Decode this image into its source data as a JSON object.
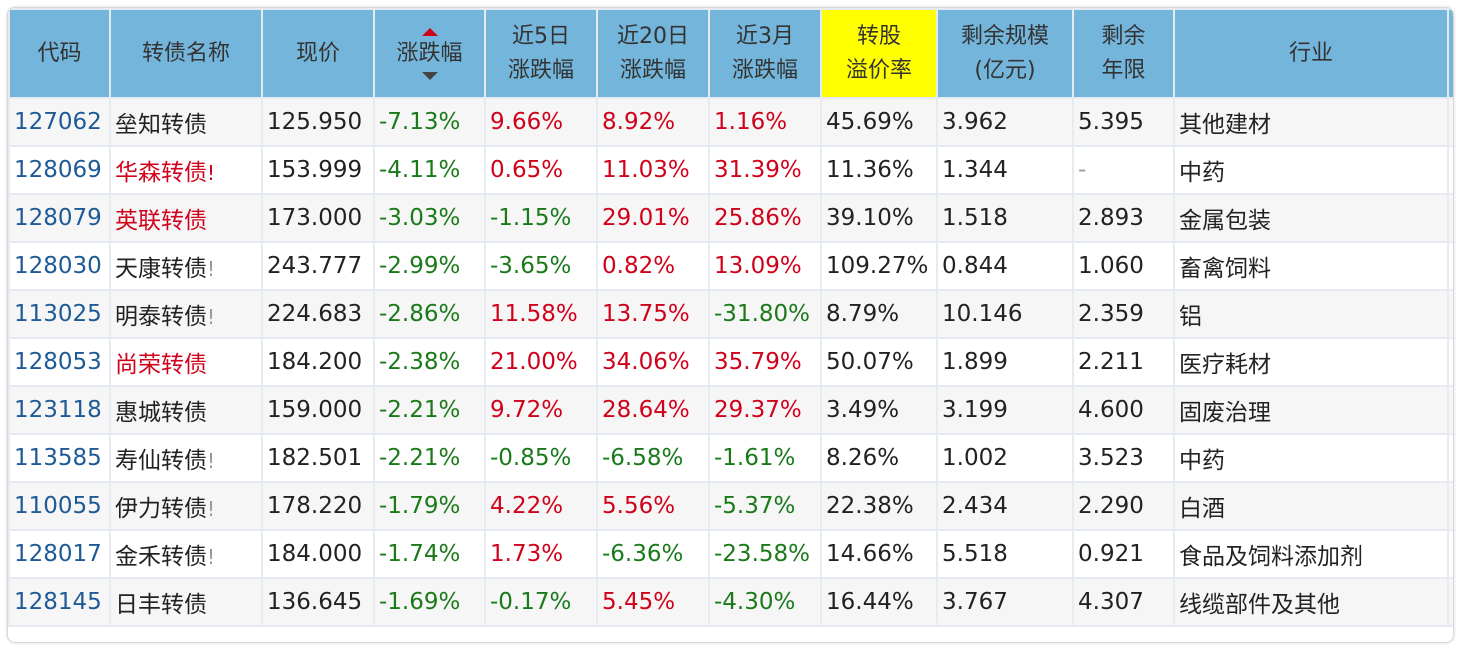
{
  "header": {
    "code": "代码",
    "name": "转债名称",
    "price": "现价",
    "change": "涨跌幅",
    "d5": [
      "近5日",
      "涨跌幅"
    ],
    "d20": [
      "近20日",
      "涨跌幅"
    ],
    "m3": [
      "近3月",
      "涨跌幅"
    ],
    "premium": [
      "转股",
      "溢价率"
    ],
    "size": [
      "剩余规模",
      "(亿元)"
    ],
    "years": [
      "剩余",
      "年限"
    ],
    "industry": "行业"
  },
  "sort": {
    "column": "涨跌幅",
    "icons": [
      "sort-up-icon",
      "sort-down-icon"
    ]
  },
  "colors": {
    "header": "#74b5db",
    "highlight": "#ffff00",
    "up": "#d0021b",
    "down": "#1a7a1a",
    "code": "#1e5a96"
  },
  "rows": [
    {
      "code": "127062",
      "name": "垒知转债",
      "flag": "",
      "name_red": false,
      "price": "125.950",
      "change": "-7.13%",
      "d5": "9.66%",
      "d20": "8.92%",
      "m3": "1.16%",
      "premium": "45.69%",
      "size": "3.962",
      "years": "5.395",
      "industry": "其他建材",
      "extra": "8"
    },
    {
      "code": "128069",
      "name": "华森转债",
      "flag": "!",
      "name_red": true,
      "price": "153.999",
      "change": "-4.11%",
      "d5": "0.65%",
      "d20": "11.03%",
      "m3": "31.39%",
      "premium": "11.36%",
      "size": "1.344",
      "years": "-",
      "industry": "中药",
      "extra": "1"
    },
    {
      "code": "128079",
      "name": "英联转债",
      "flag": "",
      "name_red": true,
      "price": "173.000",
      "change": "-3.03%",
      "d5": "-1.15%",
      "d20": "29.01%",
      "m3": "25.86%",
      "premium": "39.10%",
      "size": "1.518",
      "years": "2.893",
      "industry": "金属包装",
      "extra": "1"
    },
    {
      "code": "128030",
      "name": "天康转债",
      "flag": "!",
      "name_red": false,
      "price": "243.777",
      "change": "-2.99%",
      "d5": "-3.65%",
      "d20": "0.82%",
      "m3": "13.09%",
      "premium": "109.27%",
      "size": "0.844",
      "years": "1.060",
      "industry": "畜禽饲料",
      "extra": "1"
    },
    {
      "code": "113025",
      "name": "明泰转债",
      "flag": "!",
      "name_red": false,
      "price": "224.683",
      "change": "-2.86%",
      "d5": "11.58%",
      "d20": "13.75%",
      "m3": "-31.80%",
      "premium": "8.79%",
      "size": "10.146",
      "years": "2.359",
      "industry": "铝",
      "extra": "2"
    },
    {
      "code": "128053",
      "name": "尚荣转债",
      "flag": "",
      "name_red": true,
      "price": "184.200",
      "change": "-2.38%",
      "d5": "21.00%",
      "d20": "34.06%",
      "m3": "35.79%",
      "premium": "50.07%",
      "size": "1.899",
      "years": "2.211",
      "industry": "医疗耗材",
      "extra": "1"
    },
    {
      "code": "123118",
      "name": "惠城转债",
      "flag": "",
      "name_red": false,
      "price": "159.000",
      "change": "-2.21%",
      "d5": "9.72%",
      "d20": "28.64%",
      "m3": "29.37%",
      "premium": "3.49%",
      "size": "3.199",
      "years": "4.600",
      "industry": "固废治理",
      "extra": "1"
    },
    {
      "code": "113585",
      "name": "寿仙转债",
      "flag": "!",
      "name_red": false,
      "price": "182.501",
      "change": "-2.21%",
      "d5": "-0.85%",
      "d20": "-6.58%",
      "m3": "-1.61%",
      "premium": "8.26%",
      "size": "1.002",
      "years": "3.523",
      "industry": "中药",
      "extra": "1"
    },
    {
      "code": "110055",
      "name": "伊力转债",
      "flag": "!",
      "name_red": false,
      "price": "178.220",
      "change": "-1.79%",
      "d5": "4.22%",
      "d20": "5.56%",
      "m3": "-5.37%",
      "premium": "22.38%",
      "size": "2.434",
      "years": "2.290",
      "industry": "白酒",
      "extra": "1"
    },
    {
      "code": "128017",
      "name": "金禾转债",
      "flag": "!",
      "name_red": false,
      "price": "184.000",
      "change": "-1.74%",
      "d5": "1.73%",
      "d20": "-6.36%",
      "m3": "-23.58%",
      "premium": "14.66%",
      "size": "5.518",
      "years": "0.921",
      "industry": "食品及饲料添加剂",
      "extra": "1"
    },
    {
      "code": "128145",
      "name": "日丰转债",
      "flag": "",
      "name_red": false,
      "price": "136.645",
      "change": "-1.69%",
      "d5": "-0.17%",
      "d20": "5.45%",
      "m3": "-4.30%",
      "premium": "16.44%",
      "size": "3.767",
      "years": "4.307",
      "industry": "线缆部件及其他",
      "extra": "1"
    }
  ]
}
